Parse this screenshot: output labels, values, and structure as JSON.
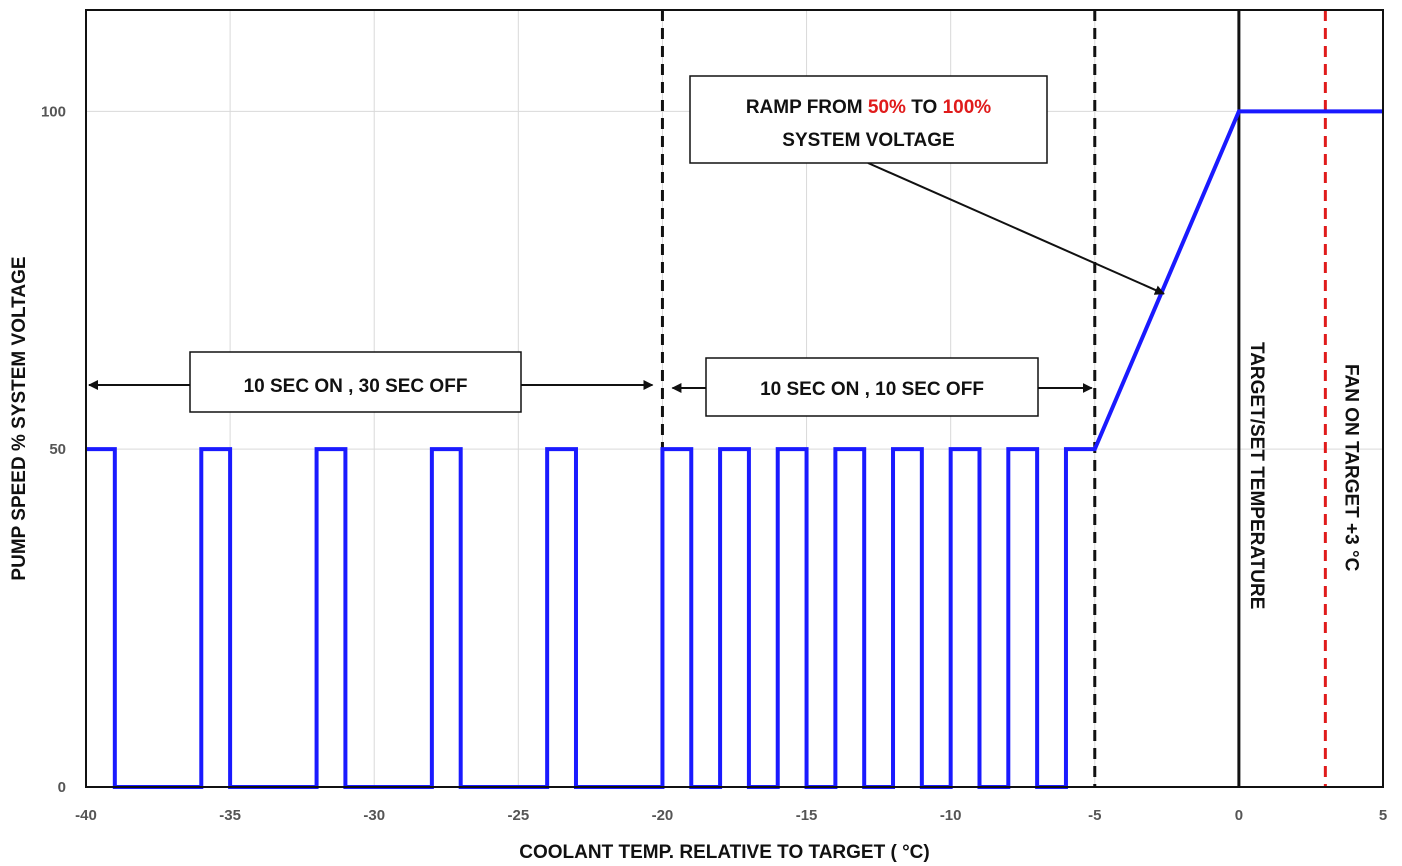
{
  "chart_data": {
    "type": "line",
    "xlabel": "COOLANT TEMP. RELATIVE TO TARGET ( °C)",
    "ylabel": "PUMP SPEED % SYSTEM VOLTAGE",
    "xlim": [
      -40,
      5
    ],
    "ylim": [
      0,
      115
    ],
    "x_ticks": [
      "-40",
      "-35",
      "-30",
      "-25",
      "-20",
      "-15",
      "-10",
      "-5",
      "0",
      "5"
    ],
    "y_ticks": [
      "0",
      "50",
      "100"
    ],
    "grid": "vertical",
    "series": [
      {
        "color": "#1a1aff",
        "points": [
          [
            -40,
            50
          ],
          [
            -39,
            50
          ],
          [
            -39,
            0
          ],
          [
            -36,
            0
          ],
          [
            -36,
            50
          ],
          [
            -35,
            50
          ],
          [
            -35,
            0
          ],
          [
            -32,
            0
          ],
          [
            -32,
            50
          ],
          [
            -31,
            50
          ],
          [
            -31,
            0
          ],
          [
            -28,
            0
          ],
          [
            -28,
            50
          ],
          [
            -27,
            50
          ],
          [
            -27,
            0
          ],
          [
            -24,
            0
          ],
          [
            -24,
            50
          ],
          [
            -23,
            50
          ],
          [
            -23,
            0
          ],
          [
            -20,
            0
          ],
          [
            -20,
            50
          ],
          [
            -19,
            50
          ],
          [
            -19,
            0
          ],
          [
            -18,
            0
          ],
          [
            -18,
            50
          ],
          [
            -17,
            50
          ],
          [
            -17,
            0
          ],
          [
            -16,
            0
          ],
          [
            -16,
            50
          ],
          [
            -15,
            50
          ],
          [
            -15,
            0
          ],
          [
            -14,
            0
          ],
          [
            -14,
            50
          ],
          [
            -13,
            50
          ],
          [
            -13,
            0
          ],
          [
            -12,
            0
          ],
          [
            -12,
            50
          ],
          [
            -11,
            50
          ],
          [
            -11,
            0
          ],
          [
            -10,
            0
          ],
          [
            -10,
            50
          ],
          [
            -9,
            50
          ],
          [
            -9,
            0
          ],
          [
            -8,
            0
          ],
          [
            -8,
            50
          ],
          [
            -7,
            50
          ],
          [
            -7,
            0
          ],
          [
            -6,
            0
          ],
          [
            -6,
            50
          ],
          [
            -5,
            50
          ],
          [
            0,
            100
          ],
          [
            5,
            100
          ]
        ]
      }
    ],
    "reference_lines": [
      {
        "x": -20,
        "style": "dashed",
        "color": "#111111",
        "label": ""
      },
      {
        "x": -5,
        "style": "dashed",
        "color": "#111111",
        "label": ""
      },
      {
        "x": 0,
        "style": "solid",
        "color": "#111111",
        "label": "TARGET/SET TEMPERATURE"
      },
      {
        "x": 3,
        "style": "dashed",
        "color": "#e01b1b",
        "label": "FAN ON TARGET +3 °C"
      }
    ],
    "annotations": {
      "box1": {
        "text": "10 SEC ON , 30 SEC OFF",
        "span": [
          -40,
          -20
        ]
      },
      "box2": {
        "text": "10 SEC ON , 10 SEC OFF",
        "span": [
          -20,
          -5
        ]
      },
      "ramp": {
        "line1_part1": "RAMP FROM ",
        "line1_red1": "50%",
        "line1_part2": " TO ",
        "line1_red2": "100%",
        "line2": "SYSTEM VOLTAGE",
        "arrow_target": [
          -2.6,
          73
        ],
        "highlight_color": "#e01b1b"
      }
    }
  }
}
